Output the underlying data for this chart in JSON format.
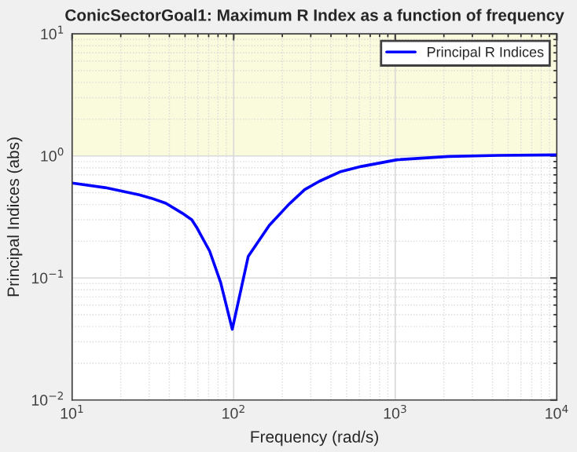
{
  "chart_data": {
    "type": "line",
    "title": "ConicSectorGoal1: Maximum R Index as a function of frequency",
    "xlabel": "Frequency (rad/s)",
    "ylabel": "Principal Indices (abs)",
    "log": "xy",
    "grid": true,
    "legend": "top right",
    "xlim": [
      10,
      10000
    ],
    "ylim": [
      0.01,
      10
    ],
    "xticks": [
      {
        "value": 10,
        "label": "10$^{1}$"
      },
      {
        "value": 100,
        "label": "10$^{2}$"
      },
      {
        "value": 1000,
        "label": "10$^{3}$"
      },
      {
        "value": 10000,
        "label": "10$^{4}$"
      }
    ],
    "yticks": [
      {
        "value": 0.01,
        "label": "10$^{−2}$"
      },
      {
        "value": 0.1,
        "label": "10$^{−1}$"
      },
      {
        "value": 1,
        "label": "10$^{0}$"
      },
      {
        "value": 10,
        "label": "10$^{1}$"
      }
    ],
    "bands": [
      {
        "axis": "y",
        "from": 1,
        "to": 10,
        "color": "#fafadc"
      }
    ],
    "series": [
      {
        "name": "Principal R Indices",
        "color": "#0000ff",
        "x": [
          10,
          16,
          26,
          31,
          38,
          48,
          55,
          59,
          71,
          83,
          98,
          123,
          166,
          219,
          275,
          339,
          454,
          617,
          1023,
          2138,
          4365,
          10000
        ],
        "values": [
          0.6,
          0.55,
          0.48,
          0.45,
          0.41,
          0.34,
          0.3,
          0.26,
          0.166,
          0.092,
          0.038,
          0.15,
          0.27,
          0.4,
          0.53,
          0.62,
          0.74,
          0.82,
          0.93,
          0.99,
          1.01,
          1.02
        ]
      }
    ]
  }
}
